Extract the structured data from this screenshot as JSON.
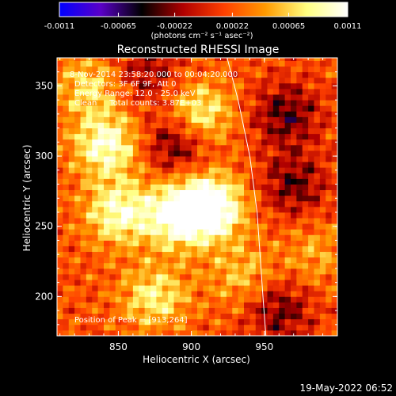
{
  "colorbar": {
    "ticks": [
      "-0.0011",
      "-0.00065",
      "-0.00022",
      "0.00022",
      "0.00065",
      "0.0011"
    ],
    "tick_values": [
      -0.0011,
      -0.00065,
      -0.00022,
      0.00022,
      0.00065,
      0.0011
    ],
    "units": "(photons cm⁻² s⁻¹ asec⁻²)",
    "range": [
      -0.0011,
      0.0011
    ],
    "colors": [
      "#0000ff",
      "#5a00c8",
      "#000000",
      "#b00000",
      "#ff4000",
      "#ff9a00",
      "#ffff80",
      "#ffffff"
    ]
  },
  "chart_data": {
    "type": "heatmap",
    "title": "Reconstructed RHESSI Image",
    "xlabel": "Heliocentric X (arcsec)",
    "ylabel": "Heliocentric Y (arcsec)",
    "xlim": [
      808,
      1000
    ],
    "ylim": [
      172,
      370
    ],
    "xticks": [
      850,
      900,
      950
    ],
    "yticks": [
      200,
      250,
      300,
      350
    ],
    "grid": false,
    "annotations": [
      "8-Nov-2014 23:58:20.000 to 00:04:20.000",
      "Detectors: 3F 6F 9F, Att 0",
      "Energy Range: 12.0 - 25.0 keV",
      "Clean     Total counts: 3.87E+03",
      "Position of Peak = [913,264]"
    ],
    "peak": {
      "x": 913,
      "y": 264
    },
    "limb_curve": [
      [
        924,
        372
      ],
      [
        932,
        340
      ],
      [
        940,
        300
      ],
      [
        945,
        260
      ],
      [
        947,
        230
      ],
      [
        949,
        200
      ],
      [
        951,
        172
      ]
    ],
    "bright_regions": [
      {
        "x": 913,
        "y": 264,
        "value": 0.0011
      },
      {
        "x": 890,
        "y": 258,
        "value": 0.00085
      },
      {
        "x": 842,
        "y": 308,
        "value": 0.0008
      },
      {
        "x": 850,
        "y": 260,
        "value": 0.00075
      },
      {
        "x": 905,
        "y": 330,
        "value": 0.0007
      },
      {
        "x": 875,
        "y": 200,
        "value": 0.0006
      },
      {
        "x": 935,
        "y": 215,
        "value": 0.0004
      },
      {
        "x": 985,
        "y": 230,
        "value": 0.0003
      },
      {
        "x": 830,
        "y": 350,
        "value": 0.0005
      }
    ],
    "dark_regions": [
      {
        "x": 890,
        "y": 310,
        "value": -0.0006
      },
      {
        "x": 965,
        "y": 330,
        "value": -0.00055
      },
      {
        "x": 970,
        "y": 280,
        "value": -0.0005
      },
      {
        "x": 960,
        "y": 190,
        "value": -0.0005
      },
      {
        "x": 870,
        "y": 360,
        "value": -0.0004
      }
    ]
  },
  "footer": {
    "timestamp": "19-May-2022 06:52"
  }
}
